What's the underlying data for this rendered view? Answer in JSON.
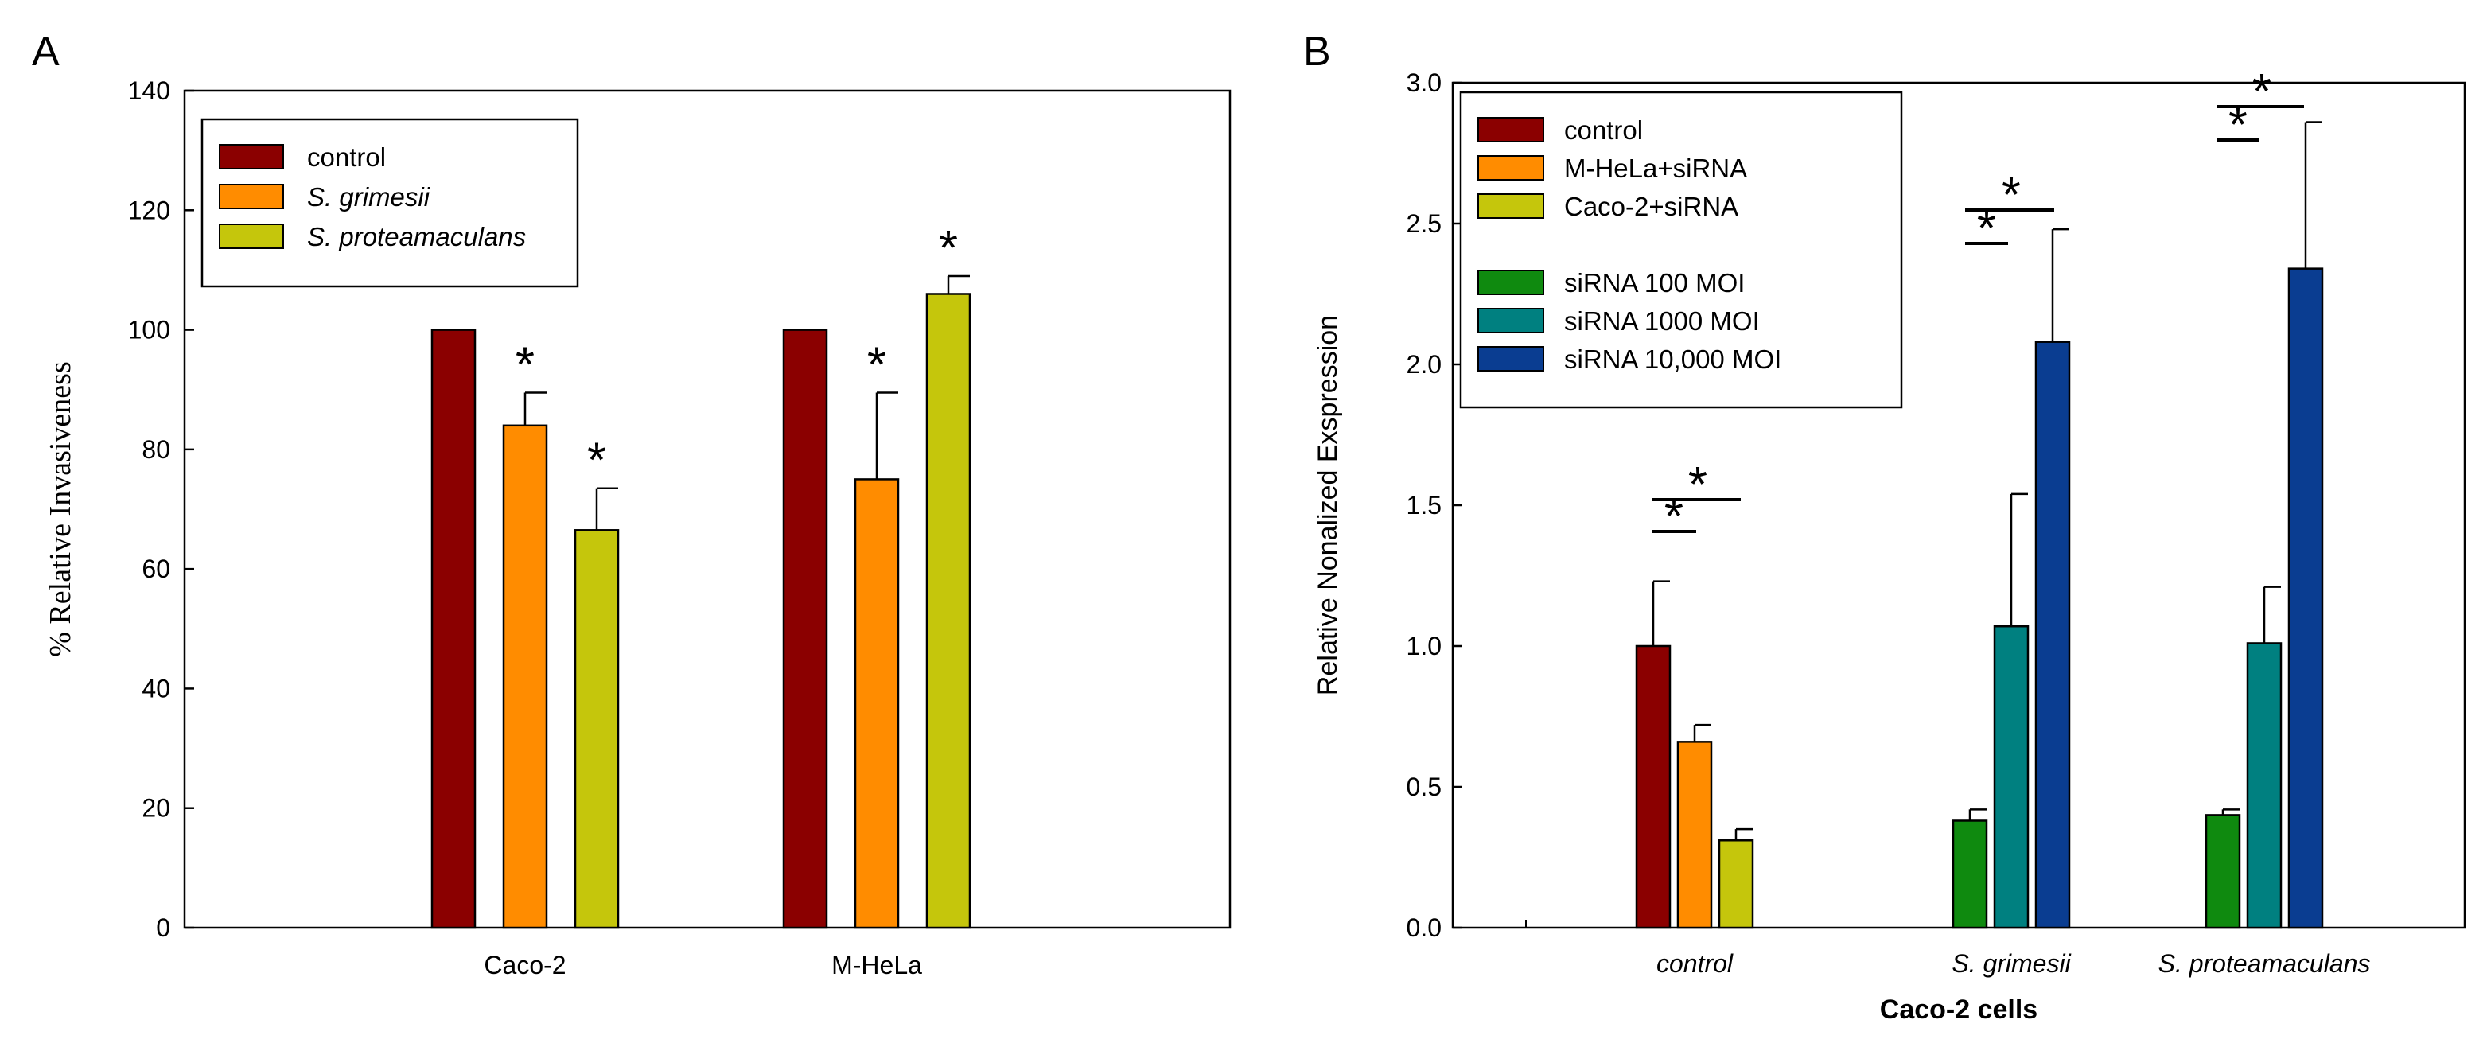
{
  "chart_data": [
    {
      "panel": "A",
      "type": "bar",
      "title": "",
      "xlabel": "",
      "ylabel": "% Relative Invasiveness",
      "ylim": [
        0,
        140
      ],
      "yticks": [
        "0",
        "20",
        "40",
        "60",
        "80",
        "100",
        "120",
        "140"
      ],
      "categories": [
        "Caco-2",
        "M-HeLa"
      ],
      "series": [
        {
          "name": "control",
          "color": "#8b0000",
          "values": [
            100,
            100
          ],
          "errors": [
            0,
            0
          ]
        },
        {
          "name": "S. grimesii",
          "color": "#ff8c00",
          "values": [
            84,
            75
          ],
          "errors": [
            5.5,
            14.5
          ]
        },
        {
          "name": "S. proteamaculans",
          "color": "#c5c60c",
          "values": [
            66.5,
            106
          ],
          "errors": [
            7,
            3
          ]
        }
      ],
      "legend": {
        "position": "top-left",
        "entries": [
          "control",
          "S. grimesii",
          "S. proteamaculans"
        ]
      },
      "annotations": [
        "*",
        "*",
        "*",
        "*"
      ]
    },
    {
      "panel": "B",
      "type": "bar",
      "title": "",
      "xlabel": "Caco-2 cells",
      "ylabel": "Relative Nonalized Exspression",
      "ylim": [
        0,
        3.0
      ],
      "yticks": [
        "0.0",
        "0.5",
        "1.0",
        "1.5",
        "2.0",
        "2.5",
        "3.0"
      ],
      "categories": [
        "control",
        "S. grimesii",
        "S. proteamaculans"
      ],
      "series": [
        {
          "name": "control",
          "color": "#8b0000",
          "values": [
            1.0,
            null,
            null
          ],
          "errors": [
            0.23,
            null,
            null
          ]
        },
        {
          "name": "M-HeLa+siRNA",
          "color": "#ff8c00",
          "values": [
            0.66,
            null,
            null
          ],
          "errors": [
            0.06,
            null,
            null
          ]
        },
        {
          "name": "Caco-2+siRNA",
          "color": "#c5c60c",
          "values": [
            0.31,
            null,
            null
          ],
          "errors": [
            0.04,
            null,
            null
          ]
        },
        {
          "name": "siRNA 100 MOI",
          "color": "#0f8a0f",
          "values": [
            null,
            0.38,
            0.4
          ],
          "errors": [
            null,
            0.04,
            0.02
          ]
        },
        {
          "name": "siRNA 1000 MOI",
          "color": "#008080",
          "values": [
            null,
            1.07,
            1.01
          ],
          "errors": [
            null,
            0.47,
            0.2
          ]
        },
        {
          "name": "siRNA 10,000 MOI",
          "color": "#0a3d91",
          "values": [
            null,
            2.08,
            2.34
          ],
          "errors": [
            null,
            0.4,
            0.52
          ]
        }
      ],
      "legend": {
        "position": "top-left",
        "entries": [
          "control",
          "M-HeLa+siRNA",
          "Caco-2+siRNA",
          "siRNA 100 MOI",
          "siRNA 1000 MOI",
          "siRNA 10,000 MOI"
        ]
      },
      "annotations": [
        "*",
        "*",
        "*",
        "*",
        "*",
        "*"
      ]
    }
  ],
  "panels": {
    "a_letter": "A",
    "b_letter": "B"
  }
}
